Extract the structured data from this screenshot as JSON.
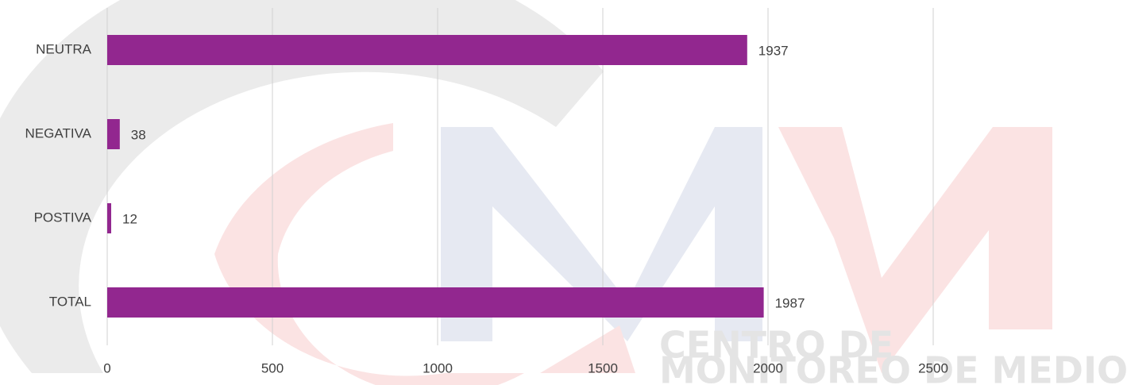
{
  "chart_data": {
    "type": "bar",
    "orientation": "horizontal",
    "categories": [
      "NEUTRA",
      "NEGATIVA",
      "POSTIVA",
      "TOTAL"
    ],
    "values": [
      1937,
      38,
      12,
      1987
    ],
    "color": "#92278f",
    "xlim": [
      0,
      2500
    ],
    "xticks": [
      0,
      500,
      1000,
      1500,
      2000,
      2500
    ],
    "grid": true,
    "watermark": [
      "CENTRO DE",
      "MONITOREO DE MEDIOS"
    ]
  }
}
